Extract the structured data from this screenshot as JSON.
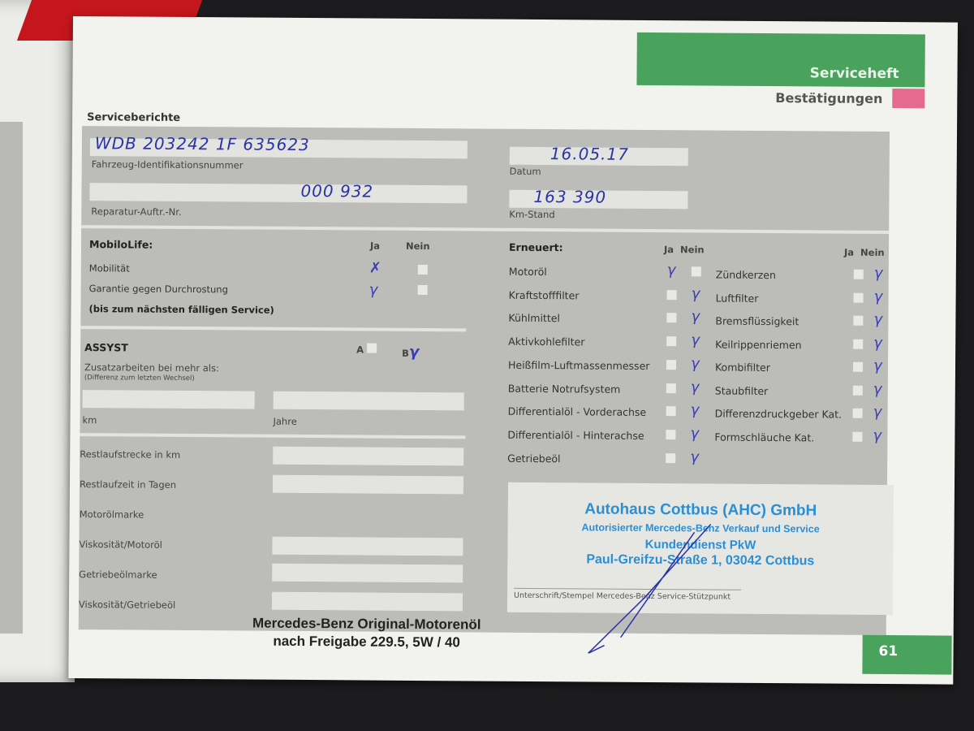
{
  "header": {
    "section": "Serviceheft",
    "subsection": "Bestätigungen",
    "page_title": "Serviceberichte",
    "page_number": "61",
    "accent": "#4aa35c",
    "pink": "#e56a92"
  },
  "vehicle": {
    "vin_label": "Fahrzeug-Identifikationsnummer",
    "vin": "WDB 203242 1F 635623",
    "date_label": "Datum",
    "date": "16.05.17",
    "order_label": "Reparatur-Auftr.-Nr.",
    "order": "000 932",
    "km_label": "Km-Stand",
    "km": "163 390"
  },
  "mobilolife": {
    "title": "MobiloLife:",
    "ja": "Ja",
    "nein": "Nein",
    "items": [
      {
        "label": "Mobilität",
        "value": "ja"
      },
      {
        "label": "Garantie gegen Durchrostung",
        "value": "ja"
      }
    ],
    "note": "(bis zum nächsten fälligen Service)"
  },
  "assyst": {
    "title": "ASSYST",
    "a": "A",
    "b": "B",
    "selected": "B",
    "extra_label": "Zusatzarbeiten bei mehr als:",
    "extra_note": "(Differenz zum letzten Wechsel)",
    "km": "km",
    "jahre": "Jahre"
  },
  "left_rows": [
    "Restlaufstrecke in km",
    "Restlaufzeit in Tagen",
    "Motorölmarke",
    "Viskosität/Motoröl",
    "Getriebeölmarke",
    "Viskosität/Getriebeöl"
  ],
  "oil_stamp": [
    "Mercedes-Benz Original-Motorenöl",
    "nach Freigabe 229.5, 5W / 40"
  ],
  "erneuert": {
    "title": "Erneuert:",
    "ja": "Ja",
    "nein": "Nein",
    "col1": [
      {
        "label": "Motoröl",
        "value": "ja"
      },
      {
        "label": "Kraftstofffilter",
        "value": "nein"
      },
      {
        "label": "Kühlmittel",
        "value": "nein"
      },
      {
        "label": "Aktivkohlefilter",
        "value": "nein"
      },
      {
        "label": "Heißfilm-Luftmassenmesser",
        "value": "nein"
      },
      {
        "label": "Batterie Notrufsystem",
        "value": "nein"
      },
      {
        "label": "Differentialöl - Vorderachse",
        "value": "nein"
      },
      {
        "label": "Differentialöl - Hinterachse",
        "value": "nein"
      },
      {
        "label": "Getriebeöl",
        "value": "nein"
      }
    ],
    "col2": [
      {
        "label": "Zündkerzen",
        "value": "nein"
      },
      {
        "label": "Luftfilter",
        "value": "nein"
      },
      {
        "label": "Bremsflüssigkeit",
        "value": "nein"
      },
      {
        "label": "Keilrippenriemen",
        "value": "nein"
      },
      {
        "label": "Kombifilter",
        "value": "nein"
      },
      {
        "label": "Staubfilter",
        "value": "nein"
      },
      {
        "label": "Differenzdruckgeber Kat.",
        "value": "nein"
      },
      {
        "label": "Formschläuche Kat.",
        "value": "nein"
      }
    ]
  },
  "dealer_stamp": {
    "lines": [
      "Autohaus Cottbus (AHC) GmbH",
      "Autorisierter Mercedes-Benz Verkauf und Service",
      "Kundendienst PkW",
      "Paul-Greifzu-Straße 1, 03042 Cottbus"
    ],
    "caption": "Unterschrift/Stempel Mercedes-Benz Service-Stützpunkt"
  }
}
